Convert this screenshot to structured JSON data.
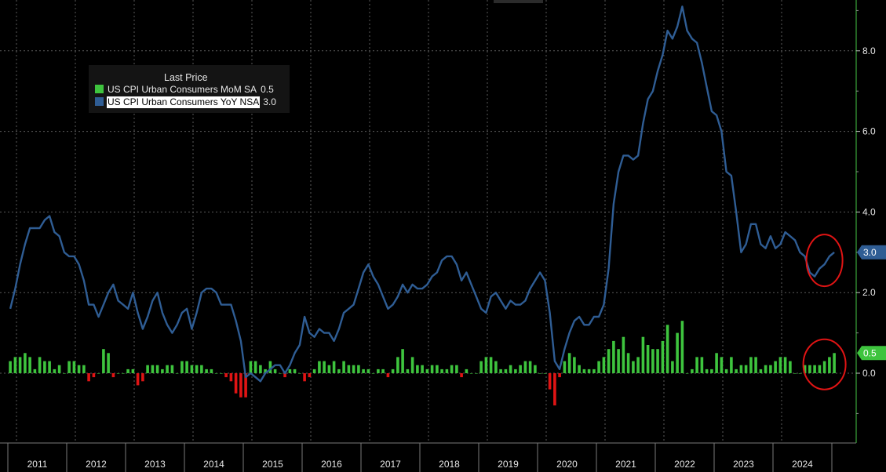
{
  "chart_data": {
    "type": "bar+line",
    "title": "",
    "legend": {
      "title": "Last Price",
      "placement": "top-left",
      "entries": [
        {
          "name": "US CPI Urban Consumers MoM SA",
          "value": "0.5",
          "color": "#3ec43e",
          "highlight": false
        },
        {
          "name": "US CPI Urban Consumers YoY NSA",
          "value": "3.0",
          "color": "#2f5d94",
          "highlight": true
        }
      ]
    },
    "y_axis": {
      "position": "right",
      "ylim": [
        -1.3,
        9.2
      ],
      "ticks": [
        "8.0",
        "6.0",
        "4.0",
        "2.0",
        "0.0"
      ],
      "tick_values": [
        8,
        6,
        4,
        2,
        0
      ],
      "grid": true
    },
    "x_axis": {
      "labels": [
        "2011",
        "2012",
        "2013",
        "2014",
        "2015",
        "2016",
        "2017",
        "2018",
        "2019",
        "2020",
        "2021",
        "2022",
        "2023",
        "2024"
      ],
      "grid": true
    },
    "last_value_tags": [
      {
        "series": "US CPI Urban Consumers YoY NSA",
        "label": "3.0",
        "value": 3.0,
        "color": "#2f5d94"
      },
      {
        "series": "US CPI Urban Consumers MoM SA",
        "label": "0.5",
        "value": 0.5,
        "color": "#3ec43e"
      }
    ],
    "colors": {
      "bar_positive": "#3ec43e",
      "bar_negative": "#e01414",
      "line": "#2f5d94",
      "grid": "#5a5a5a",
      "axis": "#46c846",
      "annotation": "#e01414"
    },
    "annotations": [
      {
        "shape": "ellipse",
        "target": "US CPI Urban Consumers YoY NSA",
        "x_range": [
          "2024-05",
          "2024-09"
        ]
      },
      {
        "shape": "ellipse",
        "target": "US CPI Urban Consumers MoM SA",
        "x_range": [
          "2024-05",
          "2024-09"
        ]
      }
    ],
    "x_start": "2011-01",
    "series": [
      {
        "name": "US CPI Urban Consumers MoM SA",
        "type": "bar",
        "values": [
          0.3,
          0.4,
          0.4,
          0.5,
          0.4,
          0.1,
          0.4,
          0.3,
          0.3,
          0.1,
          0.2,
          0.0,
          0.3,
          0.3,
          0.2,
          0.2,
          -0.2,
          -0.1,
          0.0,
          0.6,
          0.5,
          -0.1,
          0.0,
          0.0,
          0.1,
          0.1,
          -0.3,
          -0.2,
          0.2,
          0.2,
          0.2,
          0.1,
          0.2,
          0.2,
          0.0,
          0.3,
          0.3,
          0.2,
          0.2,
          0.2,
          0.1,
          0.1,
          0.0,
          0.0,
          -0.1,
          -0.2,
          -0.5,
          -0.6,
          -0.6,
          0.3,
          0.3,
          0.2,
          0.1,
          0.3,
          0.1,
          0.0,
          -0.1,
          0.1,
          0.1,
          0.0,
          -0.2,
          -0.1,
          0.1,
          0.3,
          0.3,
          0.2,
          0.3,
          0.1,
          0.3,
          0.2,
          0.2,
          0.2,
          0.1,
          0.1,
          0.0,
          0.1,
          0.1,
          -0.1,
          0.1,
          0.4,
          0.6,
          0.1,
          0.4,
          0.2,
          0.2,
          0.1,
          0.2,
          0.2,
          0.1,
          0.1,
          0.2,
          0.2,
          -0.1,
          0.1,
          0.0,
          0.0,
          0.3,
          0.4,
          0.4,
          0.3,
          0.1,
          0.1,
          0.2,
          0.1,
          0.2,
          0.3,
          0.3,
          0.2,
          0.0,
          0.0,
          -0.4,
          -0.8,
          -0.1,
          0.3,
          0.5,
          0.4,
          0.2,
          0.1,
          0.1,
          0.1,
          0.3,
          0.4,
          0.6,
          0.8,
          0.6,
          0.9,
          0.5,
          0.3,
          0.4,
          0.9,
          0.7,
          0.6,
          0.6,
          0.8,
          1.2,
          0.3,
          1.0,
          1.3,
          0.0,
          0.1,
          0.4,
          0.4,
          0.1,
          0.1,
          0.5,
          0.4,
          0.1,
          0.4,
          0.1,
          0.2,
          0.2,
          0.4,
          0.4,
          0.1,
          0.2,
          0.2,
          0.3,
          0.4,
          0.4,
          0.3,
          0.0,
          0.0,
          0.2,
          0.2,
          0.2,
          0.2,
          0.3,
          0.4,
          0.5
        ]
      },
      {
        "name": "US CPI Urban Consumers YoY NSA",
        "type": "line",
        "values": [
          1.6,
          2.1,
          2.7,
          3.2,
          3.6,
          3.6,
          3.6,
          3.8,
          3.9,
          3.5,
          3.4,
          3.0,
          2.9,
          2.9,
          2.7,
          2.3,
          1.7,
          1.7,
          1.4,
          1.7,
          2.0,
          2.2,
          1.8,
          1.7,
          1.6,
          2.0,
          1.5,
          1.1,
          1.4,
          1.8,
          2.0,
          1.5,
          1.2,
          1.0,
          1.2,
          1.5,
          1.6,
          1.1,
          1.5,
          2.0,
          2.1,
          2.1,
          2.0,
          1.7,
          1.7,
          1.7,
          1.3,
          0.8,
          -0.1,
          0.0,
          -0.1,
          -0.2,
          0.0,
          0.1,
          0.2,
          0.2,
          0.0,
          0.2,
          0.5,
          0.7,
          1.4,
          1.0,
          0.9,
          1.1,
          1.0,
          1.0,
          0.8,
          1.1,
          1.5,
          1.6,
          1.7,
          2.1,
          2.5,
          2.7,
          2.4,
          2.2,
          1.9,
          1.6,
          1.7,
          1.9,
          2.2,
          2.0,
          2.2,
          2.1,
          2.1,
          2.2,
          2.4,
          2.5,
          2.8,
          2.9,
          2.9,
          2.7,
          2.3,
          2.5,
          2.2,
          1.9,
          1.6,
          1.5,
          1.9,
          2.0,
          1.8,
          1.6,
          1.8,
          1.7,
          1.7,
          1.8,
          2.1,
          2.3,
          2.5,
          2.3,
          1.5,
          0.3,
          0.1,
          0.6,
          1.0,
          1.3,
          1.4,
          1.2,
          1.2,
          1.4,
          1.4,
          1.7,
          2.6,
          4.2,
          5.0,
          5.4,
          5.4,
          5.3,
          5.4,
          6.2,
          6.8,
          7.0,
          7.5,
          7.9,
          8.5,
          8.3,
          8.6,
          9.1,
          8.5,
          8.3,
          8.2,
          7.7,
          7.1,
          6.5,
          6.4,
          6.0,
          5.0,
          4.9,
          4.0,
          3.0,
          3.2,
          3.7,
          3.7,
          3.2,
          3.1,
          3.4,
          3.1,
          3.2,
          3.5,
          3.4,
          3.3,
          3.0,
          2.9,
          2.5,
          2.4,
          2.6,
          2.7,
          2.9,
          3.0
        ]
      }
    ]
  }
}
